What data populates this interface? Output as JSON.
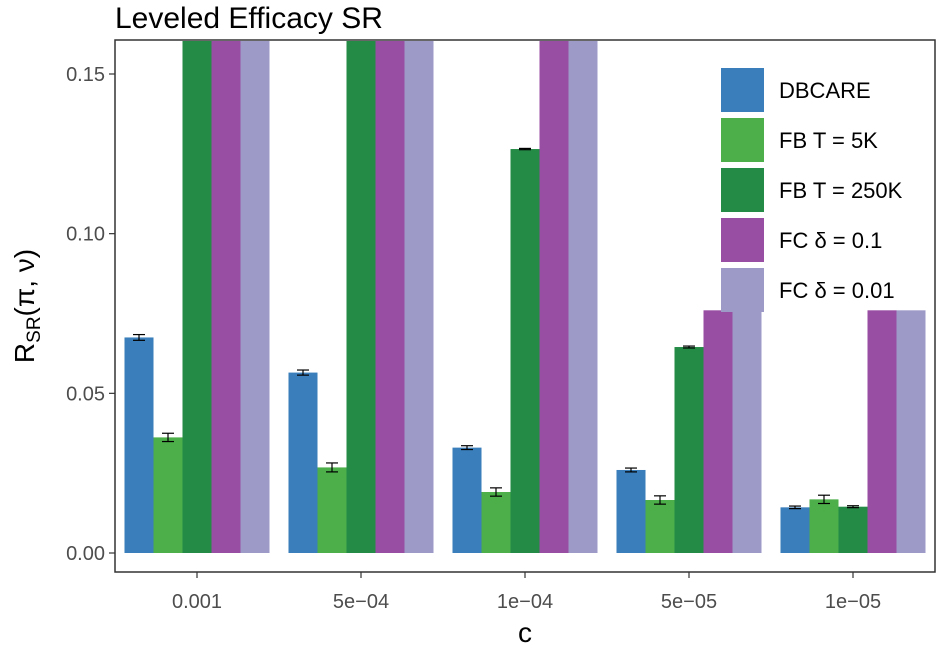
{
  "chart_data": {
    "type": "bar",
    "title": "Leveled Efficacy SR",
    "xlabel": "c",
    "ylabel": "R",
    "ylabel_sub": "SR",
    "ylabel_args": "(π, ν)",
    "ylim": [
      0,
      0.158
    ],
    "yticks": [
      0.0,
      0.05,
      0.1,
      0.15
    ],
    "ytick_labels": [
      "0.00",
      "0.05",
      "0.10",
      "0.15"
    ],
    "categories": [
      "0.001",
      "5e−04",
      "1e−04",
      "5e−05",
      "1e−05"
    ],
    "series": [
      {
        "name": "DBCARE",
        "color": "#3a7ebb",
        "values": [
          0.0675,
          0.0565,
          0.033,
          0.026,
          0.0143
        ],
        "errors": [
          0.0009,
          0.0008,
          0.0006,
          0.0006,
          0.0004
        ]
      },
      {
        "name": "FB T = 5K",
        "color": "#4daf4a",
        "values": [
          0.0362,
          0.0268,
          0.0191,
          0.0166,
          0.0168
        ],
        "errors": [
          0.0013,
          0.0014,
          0.0013,
          0.0013,
          0.0013
        ]
      },
      {
        "name": "FB T = 250K",
        "color": "#238b45",
        "values": [
          0.158,
          0.158,
          0.1265,
          0.0645,
          0.0145
        ],
        "errors": [
          null,
          null,
          0.0002,
          0.0003,
          0.0003
        ]
      },
      {
        "name": "FC δ = 0.1",
        "color": "#984ea3",
        "values": [
          0.158,
          0.158,
          0.158,
          0.076,
          0.076
        ],
        "errors": [
          null,
          null,
          null,
          null,
          null
        ]
      },
      {
        "name": "FC δ = 0.01",
        "color": "#9e9ac8",
        "values": [
          0.158,
          0.158,
          0.158,
          0.076,
          0.076
        ],
        "errors": [
          null,
          null,
          null,
          null,
          null
        ]
      }
    ],
    "legend_position": "top-right",
    "grid": false
  }
}
